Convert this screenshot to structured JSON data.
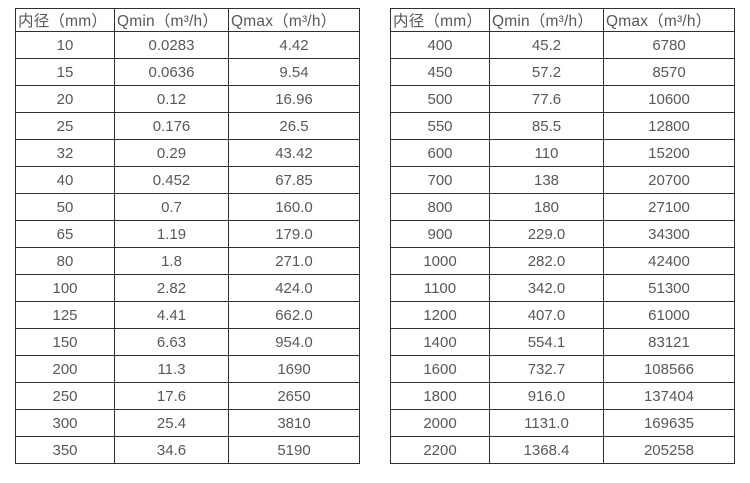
{
  "page": {
    "background_color": "#ffffff",
    "border_color": "#2f2f2f",
    "text_color": "#585858"
  },
  "tables": [
    {
      "name": "flow-table-small-diameters",
      "headers": [
        "内径（mm）",
        "Qmin（m³/h）",
        "Qmax（m³/h）"
      ],
      "rows": [
        [
          "10",
          "0.0283",
          "4.42"
        ],
        [
          "15",
          "0.0636",
          "9.54"
        ],
        [
          "20",
          "0.12",
          "16.96"
        ],
        [
          "25",
          "0.176",
          "26.5"
        ],
        [
          "32",
          "0.29",
          "43.42"
        ],
        [
          "40",
          "0.452",
          "67.85"
        ],
        [
          "50",
          "0.7",
          "160.0"
        ],
        [
          "65",
          "1.19",
          "179.0"
        ],
        [
          "80",
          "1.8",
          "271.0"
        ],
        [
          "100",
          "2.82",
          "424.0"
        ],
        [
          "125",
          "4.41",
          "662.0"
        ],
        [
          "150",
          "6.63",
          "954.0"
        ],
        [
          "200",
          "11.3",
          "1690"
        ],
        [
          "250",
          "17.6",
          "2650"
        ],
        [
          "300",
          "25.4",
          "3810"
        ],
        [
          "350",
          "34.6",
          "5190"
        ]
      ]
    },
    {
      "name": "flow-table-large-diameters",
      "headers": [
        "内径（mm）",
        "Qmin（m³/h）",
        "Qmax（m³/h）"
      ],
      "rows": [
        [
          "400",
          "45.2",
          "6780"
        ],
        [
          "450",
          "57.2",
          "8570"
        ],
        [
          "500",
          "77.6",
          "10600"
        ],
        [
          "550",
          "85.5",
          "12800"
        ],
        [
          "600",
          "110",
          "15200"
        ],
        [
          "700",
          "138",
          "20700"
        ],
        [
          "800",
          "180",
          "27100"
        ],
        [
          "900",
          "229.0",
          "34300"
        ],
        [
          "1000",
          "282.0",
          "42400"
        ],
        [
          "1100",
          "342.0",
          "51300"
        ],
        [
          "1200",
          "407.0",
          "61000"
        ],
        [
          "1400",
          "554.1",
          "83121"
        ],
        [
          "1600",
          "732.7",
          "108566"
        ],
        [
          "1800",
          "916.0",
          "137404"
        ],
        [
          "2000",
          "1131.0",
          "169635"
        ],
        [
          "2200",
          "1368.4",
          "205258"
        ]
      ]
    }
  ]
}
